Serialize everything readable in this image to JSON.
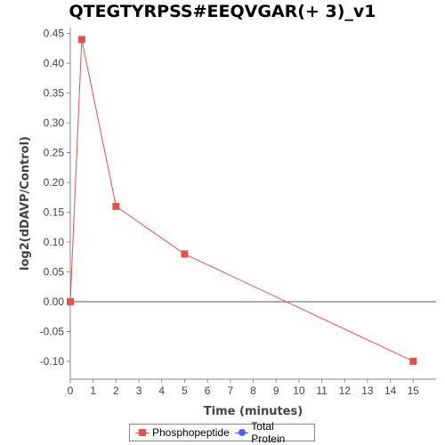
{
  "chart_data": {
    "type": "line",
    "title": "QTEGTYRPSS#EEQVGAR(+ 3)_v1",
    "xlabel": "Time (minutes)",
    "ylabel": "log2(dDAVP/Control)",
    "xlim": [
      0,
      16
    ],
    "ylim": [
      -0.13,
      0.46
    ],
    "x_ticks": [
      0,
      1,
      2,
      3,
      4,
      5,
      6,
      7,
      8,
      9,
      10,
      11,
      12,
      13,
      14,
      15
    ],
    "y_ticks": [
      -0.1,
      -0.05,
      0.0,
      0.05,
      0.1,
      0.15,
      0.2,
      0.25,
      0.3,
      0.35,
      0.4,
      0.45
    ],
    "y_tick_labels": [
      "-0.10",
      "-0.05",
      "0.00",
      "0.05",
      "0.10",
      "0.15",
      "0.20",
      "0.25",
      "0.30",
      "0.35",
      "0.40",
      "0.45"
    ],
    "reference_line_y": 0,
    "grid": false,
    "legend_position": "bottom",
    "series": [
      {
        "name": "Phosphopeptide",
        "color": "#e05252",
        "marker": "square",
        "x": [
          0,
          0.5,
          2,
          5,
          15
        ],
        "y": [
          0.0,
          0.44,
          0.16,
          0.08,
          -0.1
        ]
      },
      {
        "name": "Total Protein",
        "color": "#5a5af0",
        "marker": "circle",
        "x": [],
        "y": []
      }
    ]
  }
}
